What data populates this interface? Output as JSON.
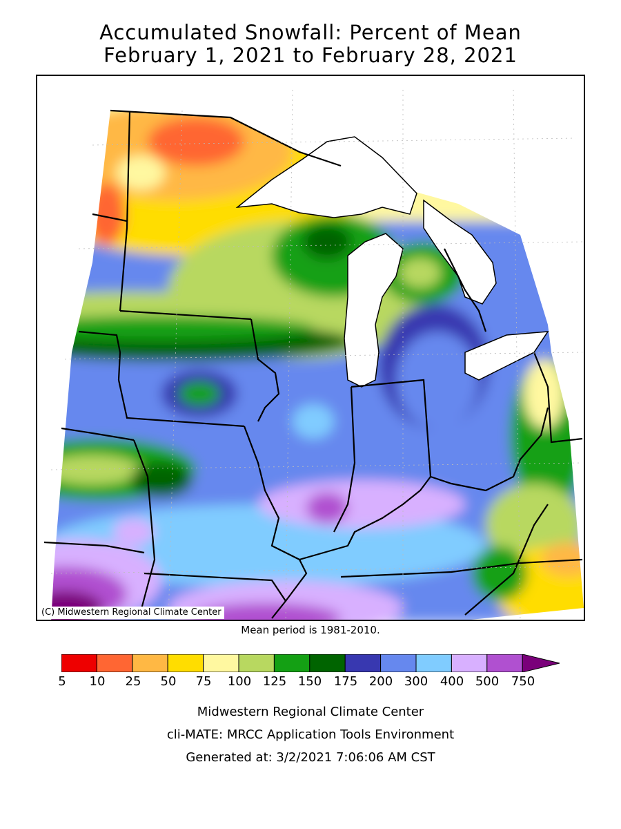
{
  "title": {
    "line1": "Accumulated Snowfall: Percent of Mean",
    "line2": "February 1, 2021 to February 28, 2021"
  },
  "map": {
    "copyright": "(C) Midwestern Regional Climate Center",
    "mean_period": "Mean period is 1981-2010."
  },
  "legend": {
    "labels": [
      "5",
      "10",
      "25",
      "50",
      "75",
      "100",
      "125",
      "150",
      "175",
      "200",
      "300",
      "400",
      "500",
      "750"
    ],
    "colors": [
      "#ee0000",
      "#ff6633",
      "#ffb844",
      "#ffdd00",
      "#fff8a0",
      "#b8d860",
      "#14a014",
      "#006400",
      "#3838b0",
      "#6688ee",
      "#80ccff",
      "#d8b0ff",
      "#b050d0"
    ],
    "overflow_color": "#7a007a"
  },
  "footer": {
    "line1": "Midwestern Regional Climate Center",
    "line2": "cli-MATE: MRCC Application Tools Environment",
    "line3": "Generated at: 3/2/2021 7:06:06 AM CST"
  }
}
